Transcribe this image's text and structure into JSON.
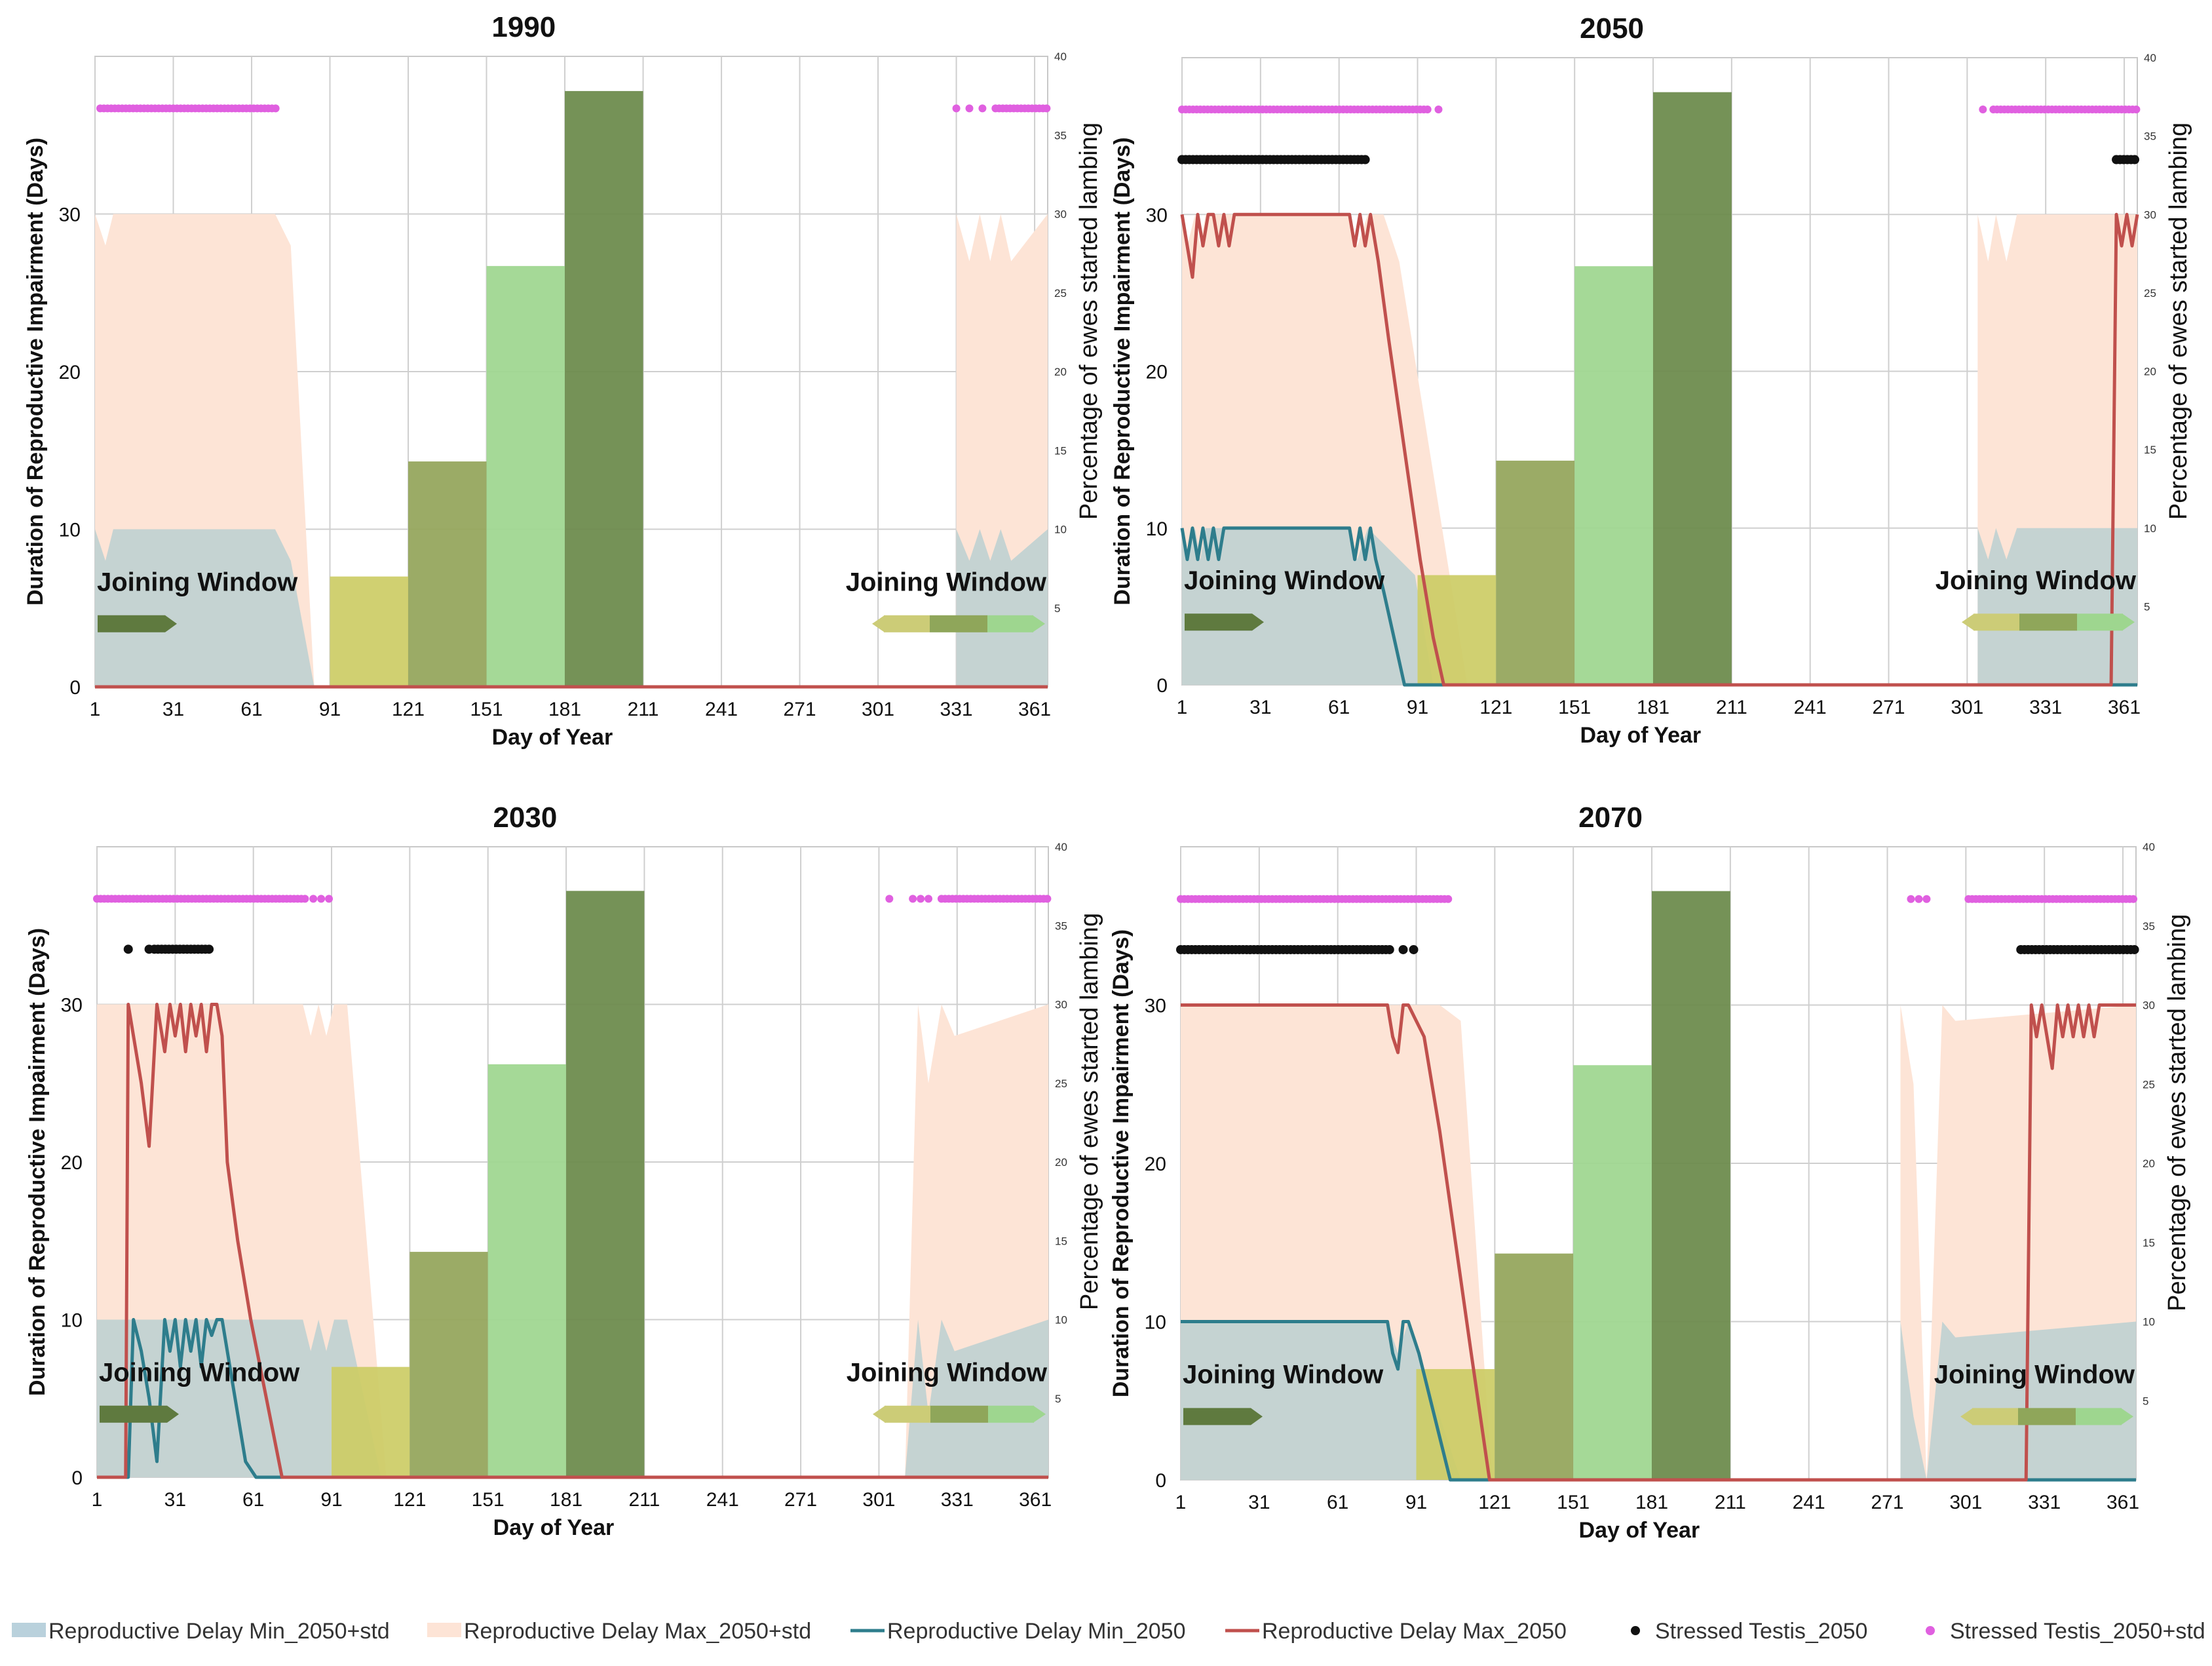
{
  "colors": {
    "minStd": "#c5d3d2",
    "maxStd": "#fde4d6",
    "minLine": "#2e7d8c",
    "maxLine": "#c0504d",
    "stressed": "#111111",
    "stressedStd": "#e060e0",
    "bars": [
      "#cccc66",
      "#93a55a",
      "#9ed68f",
      "#6b8a4a"
    ],
    "arrowDark": "#5f7a3f",
    "arrowSeg": [
      "#cccc77",
      "#8fa65a",
      "#9ed68f"
    ]
  },
  "chart_data": [
    {
      "type": "bar+area+line+scatter",
      "title": "1990",
      "xlabel": "Day of Year",
      "ylabel": "Duration of Reproductive Impairment (Days)",
      "y2label": "Percentage of ewes started lambing",
      "xlim": [
        1,
        366
      ],
      "ylim": [
        0,
        40
      ],
      "y2lim": [
        0,
        40
      ],
      "xticks": [
        "1",
        "31",
        "61",
        "91",
        "121",
        "151",
        "181",
        "211",
        "241",
        "271",
        "301",
        "331",
        "361"
      ],
      "yticks": [
        "0",
        "10",
        "20",
        "30"
      ],
      "y2ticks": [
        "5",
        "10",
        "15",
        "20",
        "25",
        "30",
        "35",
        "40"
      ],
      "joining_window_label": "Joining Window",
      "bars": [
        {
          "x0": 91,
          "x1": 121,
          "value": 7
        },
        {
          "x0": 121,
          "x1": 151,
          "value": 14.3
        },
        {
          "x0": 151,
          "x1": 181,
          "value": 26.7
        },
        {
          "x0": 181,
          "x1": 211,
          "value": 37.8
        }
      ],
      "min_std": {
        "x": [
          1,
          5,
          8,
          60,
          70,
          76,
          85
        ],
        "y": [
          10,
          8,
          10,
          10,
          10,
          8,
          0
        ],
        "tail": {
          "x": [
            331,
            336,
            340,
            344,
            348,
            352,
            366
          ],
          "y": [
            10,
            8,
            10,
            8,
            10,
            8,
            10
          ]
        }
      },
      "max_std": {
        "x": [
          1,
          5,
          8,
          60,
          70,
          76,
          85
        ],
        "y": [
          30,
          28,
          30,
          30,
          30,
          28,
          0
        ],
        "tail": {
          "x": [
            331,
            336,
            340,
            344,
            348,
            352,
            366
          ],
          "y": [
            30,
            27,
            30,
            27,
            30,
            27,
            30
          ]
        }
      },
      "min_line": {
        "x": [
          1,
          366
        ],
        "y": [
          0,
          0
        ]
      },
      "max_line": {
        "x": [
          1,
          366
        ],
        "y": [
          0,
          0
        ]
      },
      "stressed_std": {
        "ranges": [
          [
            3,
            71
          ],
          [
            346,
            366
          ]
        ],
        "points": [
          331,
          336,
          341
        ],
        "y": 36.7
      },
      "stressed": {
        "ranges": [],
        "points": [],
        "y": 33
      }
    },
    {
      "type": "bar+area+line+scatter",
      "title": "2050",
      "xlabel": "Day of Year",
      "ylabel": "Duration of Reproductive Impairment (Days)",
      "y2label": "Percentage of ewes started lambing",
      "xlim": [
        1,
        366
      ],
      "ylim": [
        0,
        40
      ],
      "y2lim": [
        0,
        40
      ],
      "xticks": [
        "1",
        "31",
        "61",
        "91",
        "121",
        "151",
        "181",
        "211",
        "241",
        "271",
        "301",
        "331",
        "361"
      ],
      "yticks": [
        "0",
        "10",
        "20",
        "30"
      ],
      "y2ticks": [
        "5",
        "10",
        "15",
        "20",
        "25",
        "30",
        "35",
        "40"
      ],
      "joining_window_label": "Joining Window",
      "bars": [
        {
          "x0": 91,
          "x1": 121,
          "value": 7
        },
        {
          "x0": 121,
          "x1": 151,
          "value": 14.3
        },
        {
          "x0": 151,
          "x1": 181,
          "value": 26.7
        },
        {
          "x0": 181,
          "x1": 211,
          "value": 37.8
        }
      ],
      "min_std": {
        "x": [
          1,
          3,
          6,
          8,
          10,
          65,
          68,
          72,
          90,
          97
        ],
        "y": [
          10,
          8,
          10,
          8,
          10,
          10,
          8,
          10,
          7,
          0
        ],
        "tail": {
          "x": [
            305,
            309,
            312,
            316,
            320,
            366
          ],
          "y": [
            10,
            8,
            10,
            8,
            10,
            10
          ]
        }
      },
      "max_std": {
        "x": [
          1,
          3,
          6,
          8,
          10,
          65,
          68,
          72,
          78,
          84,
          110
        ],
        "y": [
          30,
          28,
          30,
          28,
          30,
          30,
          28,
          30,
          30,
          27,
          0
        ],
        "tail": {
          "x": [
            305,
            309,
            312,
            316,
            320,
            366
          ],
          "y": [
            30,
            27,
            30,
            27,
            30,
            30
          ]
        }
      },
      "min_line": {
        "x": [
          1,
          3,
          5,
          7,
          9,
          11,
          13,
          15,
          17,
          19,
          65,
          67,
          69,
          71,
          73,
          75,
          78,
          82,
          86,
          93,
          366
        ],
        "y": [
          10,
          8,
          10,
          8,
          10,
          8,
          10,
          8,
          10,
          10,
          10,
          8,
          10,
          8,
          10,
          8,
          6,
          3,
          0,
          0,
          0
        ]
      },
      "max_line": {
        "x": [
          1,
          3,
          5,
          7,
          9,
          11,
          13,
          15,
          17,
          19,
          21,
          65,
          67,
          69,
          71,
          73,
          76,
          80,
          86,
          92,
          97,
          101,
          352,
          356,
          358,
          360,
          362,
          364,
          366
        ],
        "y": [
          30,
          28,
          26,
          30,
          28,
          30,
          30,
          28,
          30,
          28,
          30,
          30,
          28,
          30,
          28,
          30,
          27,
          22,
          15,
          8,
          3,
          0,
          0,
          0,
          30,
          28,
          30,
          28,
          30
        ]
      },
      "stressed_std": {
        "ranges": [
          [
            1,
            95
          ],
          [
            311,
            366
          ]
        ],
        "points": [
          99,
          307
        ],
        "y": 36.7
      },
      "stressed": {
        "ranges": [
          [
            1,
            72
          ],
          [
            358,
            366
          ]
        ],
        "points": [],
        "y": 33.5
      }
    },
    {
      "type": "bar+area+line+scatter",
      "title": "2030",
      "xlabel": "Day of Year",
      "ylabel": "Duration of Reproductive Impairment (Days)",
      "y2label": "Percentage of ewes started lambing",
      "xlim": [
        1,
        366
      ],
      "ylim": [
        0,
        40
      ],
      "y2lim": [
        0,
        40
      ],
      "xticks": [
        "1",
        "31",
        "61",
        "91",
        "121",
        "151",
        "181",
        "211",
        "241",
        "271",
        "301",
        "331",
        "361"
      ],
      "yticks": [
        "0",
        "10",
        "20",
        "30"
      ],
      "y2ticks": [
        "5",
        "10",
        "15",
        "20",
        "25",
        "30",
        "35",
        "40"
      ],
      "joining_window_label": "Joining Window",
      "bars": [
        {
          "x0": 91,
          "x1": 121,
          "value": 7
        },
        {
          "x0": 121,
          "x1": 151,
          "value": 14.3
        },
        {
          "x0": 151,
          "x1": 181,
          "value": 26.2
        },
        {
          "x0": 181,
          "x1": 211,
          "value": 37.2
        }
      ],
      "min_std": {
        "x": [
          1,
          80,
          83,
          86,
          89,
          92,
          97,
          110
        ],
        "y": [
          10,
          10,
          8,
          10,
          8,
          10,
          10,
          0
        ],
        "tail": {
          "x": [
            311,
            316,
            320,
            325,
            330,
            366
          ],
          "y": [
            0,
            10,
            4,
            10,
            8,
            10
          ]
        }
      },
      "max_std": {
        "x": [
          1,
          80,
          83,
          86,
          89,
          92,
          97,
          112
        ],
        "y": [
          30,
          30,
          28,
          30,
          28,
          30,
          30,
          0
        ],
        "tail": {
          "x": [
            311,
            316,
            320,
            325,
            330,
            366
          ],
          "y": [
            0,
            30,
            25,
            30,
            28,
            30
          ]
        }
      },
      "min_line": {
        "x": [
          1,
          13,
          15,
          18,
          21,
          24,
          27,
          29,
          31,
          33,
          35,
          37,
          39,
          41,
          43,
          45,
          47,
          49,
          51,
          55,
          58,
          62,
          366
        ],
        "y": [
          0,
          0,
          10,
          8,
          5,
          1,
          10,
          8,
          10,
          7,
          10,
          8,
          10,
          7,
          10,
          9,
          10,
          10,
          8,
          4,
          1,
          0,
          0
        ]
      },
      "max_line": {
        "x": [
          1,
          12,
          13,
          15,
          18,
          21,
          24,
          27,
          29,
          31,
          33,
          35,
          37,
          39,
          41,
          43,
          45,
          47,
          49,
          51,
          55,
          60,
          66,
          72,
          77,
          366
        ],
        "y": [
          0,
          0,
          30,
          28,
          25,
          21,
          30,
          27,
          30,
          28,
          30,
          27,
          30,
          28,
          30,
          27,
          30,
          30,
          28,
          20,
          15,
          10,
          5,
          0,
          0,
          0
        ]
      },
      "stressed_std": {
        "ranges": [
          [
            1,
            81
          ],
          [
            325,
            366
          ]
        ],
        "points": [
          84,
          87,
          90,
          305,
          314,
          317,
          320
        ],
        "y": 36.7
      },
      "stressed": {
        "ranges": [
          [
            23,
            45
          ]
        ],
        "points": [
          13,
          21
        ],
        "y": 33.5
      }
    },
    {
      "type": "bar+area+line+scatter",
      "title": "2070",
      "xlabel": "Day of Year",
      "ylabel": "Duration of Reproductive Impairment (Days)",
      "y2label": "Percentage of ewes started lambing",
      "xlim": [
        1,
        366
      ],
      "ylim": [
        0,
        40
      ],
      "y2lim": [
        0,
        40
      ],
      "xticks": [
        "1",
        "31",
        "61",
        "91",
        "121",
        "151",
        "181",
        "211",
        "241",
        "271",
        "301",
        "331",
        "361"
      ],
      "yticks": [
        "0",
        "10",
        "20",
        "30"
      ],
      "y2ticks": [
        "5",
        "10",
        "15",
        "20",
        "25",
        "30",
        "35",
        "40"
      ],
      "joining_window_label": "Joining Window",
      "bars": [
        {
          "x0": 91,
          "x1": 121,
          "value": 7
        },
        {
          "x0": 121,
          "x1": 151,
          "value": 14.3
        },
        {
          "x0": 151,
          "x1": 181,
          "value": 26.2
        },
        {
          "x0": 181,
          "x1": 211,
          "value": 37.2
        }
      ],
      "min_std": {
        "x": [
          1,
          80,
          84,
          88,
          108
        ],
        "y": [
          10,
          10,
          8,
          10,
          0
        ],
        "tail": {
          "x": [
            276,
            281,
            286,
            292,
            297,
            366
          ],
          "y": [
            10,
            4,
            0,
            10,
            9,
            10
          ]
        }
      },
      "max_std": {
        "x": [
          1,
          100,
          108,
          120
        ],
        "y": [
          30,
          30,
          29,
          0
        ],
        "tail": {
          "x": [
            276,
            281,
            286,
            292,
            297,
            366
          ],
          "y": [
            30,
            25,
            0,
            30,
            29,
            30
          ]
        }
      },
      "min_line": {
        "x": [
          1,
          80,
          82,
          84,
          86,
          88,
          92,
          98,
          104,
          366
        ],
        "y": [
          10,
          10,
          8,
          7,
          10,
          10,
          8,
          4,
          0,
          0
        ]
      },
      "max_line": {
        "x": [
          1,
          80,
          82,
          84,
          86,
          88,
          94,
          100,
          106,
          112,
          119,
          324,
          326,
          328,
          330,
          332,
          334,
          336,
          338,
          340,
          342,
          344,
          346,
          348,
          350,
          352,
          366
        ],
        "y": [
          30,
          30,
          28,
          27,
          30,
          30,
          28,
          22,
          15,
          8,
          0,
          0,
          30,
          28,
          30,
          28,
          26,
          30,
          28,
          30,
          28,
          30,
          28,
          30,
          28,
          30,
          30
        ]
      },
      "stressed_std": {
        "ranges": [
          [
            1,
            104
          ],
          [
            302,
            366
          ]
        ],
        "points": [
          280,
          283,
          286
        ],
        "y": 36.7
      },
      "stressed": {
        "ranges": [
          [
            1,
            82
          ],
          [
            322,
            366
          ]
        ],
        "points": [
          86,
          90
        ],
        "y": 33.5
      }
    }
  ],
  "legend": [
    {
      "label": "Reproductive Delay Min_2050+std",
      "kind": "patch",
      "color": "#b9d1dc"
    },
    {
      "label": "Reproductive Delay Max_2050+std",
      "kind": "patch",
      "color": "#fde4d6"
    },
    {
      "label": "Reproductive Delay Min_2050",
      "kind": "line",
      "color": "#2e7d8c"
    },
    {
      "label": "Reproductive Delay Max_2050",
      "kind": "line",
      "color": "#c0504d"
    },
    {
      "label": "Stressed Testis_2050",
      "kind": "dot",
      "color": "#111111"
    },
    {
      "label": "Stressed Testis_2050+std",
      "kind": "dot",
      "color": "#e060e0"
    }
  ]
}
